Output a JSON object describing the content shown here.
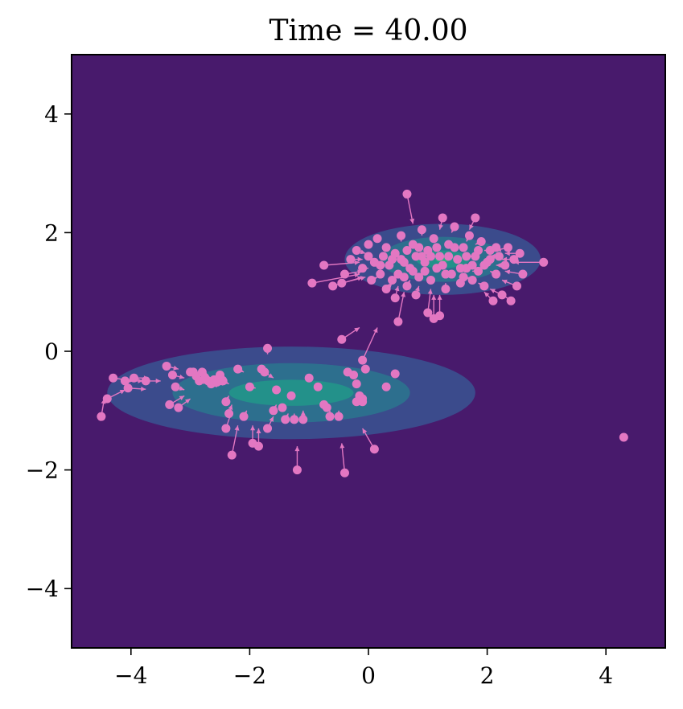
{
  "chart_data": {
    "type": "scatter",
    "title": "Time = 40.00",
    "xlim": [
      -5,
      5
    ],
    "ylim": [
      -5,
      5
    ],
    "x_ticks": [
      -4,
      -2,
      0,
      2,
      4
    ],
    "y_ticks": [
      -4,
      -2,
      0,
      2,
      4
    ],
    "x_tick_labels": [
      "−4",
      "−2",
      "0",
      "2",
      "4"
    ],
    "y_tick_labels": [
      "−4",
      "−2",
      "0",
      "2",
      "4"
    ],
    "grid": false,
    "colors": {
      "background": "#481a6c",
      "level_1": "#3b4b8c",
      "level_2": "#2d6f8e",
      "level_3": "#23918a",
      "level_4": "#29af7f",
      "points": "#e377c2"
    },
    "density_components": [
      {
        "name": "cluster-left",
        "center": [
          -1.3,
          -0.7
        ],
        "sx": 1.05,
        "sy": 0.26,
        "levels": [
          {
            "rx": 3.1,
            "ry": 0.78
          },
          {
            "rx": 2.0,
            "ry": 0.5
          },
          {
            "rx": 1.05,
            "ry": 0.22
          }
        ]
      },
      {
        "name": "cluster-right",
        "center": [
          1.25,
          1.55
        ],
        "sx": 0.55,
        "sy": 0.22,
        "levels": [
          {
            "rx": 1.65,
            "ry": 0.6
          },
          {
            "rx": 1.05,
            "ry": 0.38
          },
          {
            "rx": 0.45,
            "ry": 0.15
          },
          {
            "rx": 0.12,
            "ry": 0.05
          }
        ]
      }
    ],
    "points": [
      [
        -4.5,
        -1.1,
        0.05,
        0.3
      ],
      [
        -4.4,
        -0.8,
        0.3,
        0.15
      ],
      [
        -4.3,
        -0.45,
        0.35,
        -0.05
      ],
      [
        -4.1,
        -0.5,
        0.3,
        0.0
      ],
      [
        -4.05,
        -0.62,
        0.3,
        -0.02
      ],
      [
        -3.95,
        -0.45,
        0.25,
        0.0
      ],
      [
        -3.75,
        -0.5,
        0.25,
        0.0
      ],
      [
        -3.4,
        -0.25,
        0.2,
        -0.05
      ],
      [
        -3.3,
        -0.4,
        0.2,
        -0.05
      ],
      [
        -3.25,
        -0.6,
        0.15,
        -0.05
      ],
      [
        -3.35,
        -0.9,
        0.25,
        0.15
      ],
      [
        -3.2,
        -0.95,
        0.2,
        0.15
      ],
      [
        -3.0,
        -0.35,
        0.15,
        -0.05
      ],
      [
        -2.95,
        -0.35,
        0.15,
        -0.05
      ],
      [
        -2.9,
        -0.42,
        0.15,
        -0.05
      ],
      [
        -2.85,
        -0.5,
        0.15,
        -0.03
      ],
      [
        -2.8,
        -0.35,
        0.1,
        -0.05
      ],
      [
        -2.75,
        -0.45,
        0.1,
        -0.05
      ],
      [
        -2.7,
        -0.5,
        0.1,
        -0.05
      ],
      [
        -2.65,
        -0.55,
        0.1,
        -0.05
      ],
      [
        -2.6,
        -0.48,
        0.1,
        -0.05
      ],
      [
        -2.55,
        -0.52,
        0.1,
        -0.05
      ],
      [
        -2.5,
        -0.4,
        0.1,
        -0.05
      ],
      [
        -2.45,
        -0.5,
        0.1,
        -0.05
      ],
      [
        -2.4,
        -0.85,
        0.05,
        0.1
      ],
      [
        -2.35,
        -1.05,
        0.05,
        0.15
      ],
      [
        -2.3,
        -1.75,
        0.1,
        0.5
      ],
      [
        -2.4,
        -1.3,
        0.1,
        0.3
      ],
      [
        -2.1,
        -1.1,
        0.05,
        0.1
      ],
      [
        -2.2,
        -0.3,
        0.1,
        -0.05
      ],
      [
        -2.0,
        -0.6,
        0.1,
        -0.02
      ],
      [
        -1.95,
        -1.55,
        0.0,
        0.3
      ],
      [
        -1.85,
        -1.6,
        0.0,
        0.3
      ],
      [
        -1.7,
        -1.3,
        0.1,
        0.2
      ],
      [
        -1.8,
        -0.3,
        0.1,
        -0.05
      ],
      [
        -1.75,
        -0.35,
        0.15,
        -0.1
      ],
      [
        -1.7,
        0.05,
        0.0,
        -0.1
      ],
      [
        -1.6,
        -1.0,
        0.05,
        0.1
      ],
      [
        -1.55,
        -0.65,
        0.05,
        0.0
      ],
      [
        -1.45,
        -0.95,
        0.05,
        0.05
      ],
      [
        -1.4,
        -1.15,
        0.05,
        0.1
      ],
      [
        -1.3,
        -0.75,
        0.05,
        0.0
      ],
      [
        -1.25,
        -1.15,
        0.0,
        0.1
      ],
      [
        -1.2,
        -2.0,
        0.0,
        0.4
      ],
      [
        -1.1,
        -1.15,
        0.0,
        0.15
      ],
      [
        -1.0,
        -0.45,
        0.0,
        -0.05
      ],
      [
        -0.85,
        -0.6,
        0.0,
        -0.02
      ],
      [
        -0.75,
        -0.9,
        0.0,
        0.05
      ],
      [
        -0.7,
        -0.95,
        0.0,
        0.05
      ],
      [
        -0.65,
        -1.1,
        0.0,
        0.1
      ],
      [
        -0.5,
        -1.1,
        0.0,
        0.1
      ],
      [
        -0.4,
        -2.05,
        -0.05,
        0.5
      ],
      [
        -0.35,
        -0.35,
        0.0,
        -0.05
      ],
      [
        -0.25,
        -0.4,
        0.0,
        -0.05
      ],
      [
        -0.2,
        -0.55,
        0.0,
        0.0
      ],
      [
        -0.2,
        -0.85,
        0.0,
        0.05
      ],
      [
        -0.15,
        -0.75,
        0.0,
        0.0
      ],
      [
        -0.1,
        -0.85,
        0.0,
        0.05
      ],
      [
        -0.1,
        -0.8,
        0.05,
        0.05
      ],
      [
        -0.1,
        -0.15,
        0.25,
        0.55
      ],
      [
        -0.05,
        -0.3,
        0.0,
        0.0
      ],
      [
        -0.45,
        0.2,
        0.3,
        0.2
      ],
      [
        0.1,
        -1.65,
        -0.2,
        0.35
      ],
      [
        0.3,
        -0.6,
        0.0,
        0.0
      ],
      [
        0.45,
        -0.38,
        0.0,
        -0.05
      ],
      [
        4.3,
        -1.45,
        0.0,
        0.0
      ],
      [
        -0.95,
        1.15,
        0.8,
        0.15
      ],
      [
        -0.75,
        1.45,
        0.6,
        0.05
      ],
      [
        -0.6,
        1.1,
        0.5,
        0.15
      ],
      [
        -0.45,
        1.15,
        0.4,
        0.1
      ],
      [
        -0.4,
        1.3,
        0.3,
        0.05
      ],
      [
        -0.3,
        1.55,
        0.2,
        0.0
      ],
      [
        -0.2,
        1.7,
        0.15,
        -0.05
      ],
      [
        -0.1,
        1.4,
        0.1,
        0.0
      ],
      [
        0.0,
        1.8,
        0.05,
        -0.05
      ],
      [
        0.05,
        1.2,
        0.1,
        0.05
      ],
      [
        0.1,
        1.5,
        0.05,
        0.0
      ],
      [
        0.15,
        1.9,
        0.05,
        -0.05
      ],
      [
        0.2,
        1.3,
        0.05,
        0.05
      ],
      [
        0.25,
        1.6,
        0.05,
        0.0
      ],
      [
        0.3,
        1.05,
        0.1,
        0.1
      ],
      [
        0.3,
        1.75,
        0.05,
        -0.05
      ],
      [
        0.35,
        1.45,
        0.05,
        0.0
      ],
      [
        0.4,
        1.2,
        0.05,
        0.05
      ],
      [
        0.45,
        0.9,
        0.05,
        0.2
      ],
      [
        0.45,
        1.65,
        0.05,
        0.0
      ],
      [
        0.5,
        0.5,
        0.1,
        0.5
      ],
      [
        0.5,
        1.3,
        0.05,
        0.05
      ],
      [
        0.55,
        1.95,
        0.0,
        -0.1
      ],
      [
        0.6,
        1.5,
        0.05,
        0.0
      ],
      [
        0.65,
        2.65,
        0.1,
        -0.5
      ],
      [
        0.65,
        1.1,
        0.05,
        0.1
      ],
      [
        0.7,
        1.4,
        0.05,
        0.0
      ],
      [
        0.75,
        1.8,
        0.05,
        -0.05
      ],
      [
        0.8,
        0.95,
        0.05,
        0.15
      ],
      [
        0.8,
        1.6,
        0.05,
        0.0
      ],
      [
        0.85,
        1.25,
        0.05,
        0.05
      ],
      [
        0.9,
        2.05,
        0.0,
        -0.1
      ],
      [
        0.95,
        1.5,
        0.05,
        0.0
      ],
      [
        1.0,
        1.7,
        0.05,
        0.0
      ],
      [
        1.0,
        0.65,
        0.05,
        0.4
      ],
      [
        1.05,
        1.2,
        0.0,
        0.05
      ],
      [
        1.1,
        1.9,
        0.0,
        -0.05
      ],
      [
        1.1,
        0.55,
        0.0,
        0.4
      ],
      [
        1.15,
        1.4,
        0.0,
        0.0
      ],
      [
        1.2,
        0.6,
        0.0,
        0.35
      ],
      [
        1.2,
        1.6,
        0.0,
        0.0
      ],
      [
        1.25,
        2.25,
        -0.05,
        -0.2
      ],
      [
        1.3,
        1.05,
        0.0,
        0.1
      ],
      [
        1.35,
        1.8,
        0.0,
        -0.05
      ],
      [
        1.4,
        1.3,
        -0.05,
        0.05
      ],
      [
        1.45,
        2.1,
        -0.05,
        -0.1
      ],
      [
        1.5,
        1.55,
        -0.05,
        0.0
      ],
      [
        1.55,
        1.15,
        -0.05,
        0.05
      ],
      [
        1.6,
        1.75,
        -0.05,
        -0.05
      ],
      [
        1.65,
        1.4,
        -0.05,
        0.0
      ],
      [
        1.7,
        1.95,
        -0.05,
        -0.1
      ],
      [
        1.75,
        1.2,
        -0.1,
        0.05
      ],
      [
        1.8,
        2.25,
        -0.1,
        -0.2
      ],
      [
        1.8,
        1.6,
        -0.1,
        0.0
      ],
      [
        1.85,
        1.35,
        -0.1,
        0.0
      ],
      [
        1.9,
        1.85,
        -0.1,
        -0.05
      ],
      [
        1.95,
        1.1,
        -0.1,
        0.05
      ],
      [
        2.0,
        1.5,
        -0.1,
        0.0
      ],
      [
        2.05,
        1.7,
        -0.1,
        0.0
      ],
      [
        2.1,
        0.85,
        -0.15,
        0.15
      ],
      [
        2.15,
        1.3,
        -0.1,
        0.05
      ],
      [
        2.2,
        1.6,
        -0.15,
        0.0
      ],
      [
        2.25,
        0.95,
        -0.2,
        0.1
      ],
      [
        2.3,
        1.45,
        -0.15,
        0.0
      ],
      [
        2.35,
        1.75,
        -0.2,
        -0.05
      ],
      [
        2.4,
        0.85,
        -0.2,
        0.15
      ],
      [
        2.45,
        1.55,
        -0.2,
        0.0
      ],
      [
        2.5,
        1.1,
        -0.25,
        0.1
      ],
      [
        2.55,
        1.65,
        -0.25,
        0.0
      ],
      [
        2.6,
        1.3,
        -0.3,
        0.05
      ],
      [
        2.95,
        1.5,
        -0.5,
        0.0
      ],
      [
        0.55,
        1.55,
        0.0,
        0.0
      ],
      [
        0.65,
        1.7,
        0.0,
        0.0
      ],
      [
        0.75,
        1.35,
        0.0,
        0.0
      ],
      [
        0.85,
        1.75,
        0.0,
        0.0
      ],
      [
        0.95,
        1.35,
        0.0,
        0.0
      ],
      [
        1.05,
        1.6,
        0.0,
        0.0
      ],
      [
        1.15,
        1.75,
        0.0,
        0.0
      ],
      [
        1.25,
        1.45,
        0.0,
        0.0
      ],
      [
        1.35,
        1.6,
        0.0,
        0.0
      ],
      [
        1.45,
        1.75,
        0.0,
        0.0
      ],
      [
        1.55,
        1.4,
        0.0,
        0.0
      ],
      [
        1.65,
        1.6,
        0.0,
        0.0
      ],
      [
        1.75,
        1.45,
        0.0,
        0.0
      ],
      [
        1.85,
        1.7,
        0.0,
        0.0
      ],
      [
        1.95,
        1.45,
        0.0,
        0.0
      ],
      [
        2.05,
        1.55,
        0.0,
        0.0
      ],
      [
        0.4,
        1.55,
        0.0,
        0.0
      ],
      [
        0.2,
        1.45,
        0.0,
        0.0
      ],
      [
        0.0,
        1.6,
        0.0,
        0.0
      ],
      [
        0.6,
        1.25,
        0.0,
        0.0
      ],
      [
        1.3,
        1.3,
        0.0,
        0.0
      ],
      [
        1.6,
        1.25,
        0.0,
        0.0
      ],
      [
        2.15,
        1.75,
        0.0,
        0.0
      ],
      [
        0.9,
        1.6,
        0.0,
        0.0
      ]
    ]
  }
}
